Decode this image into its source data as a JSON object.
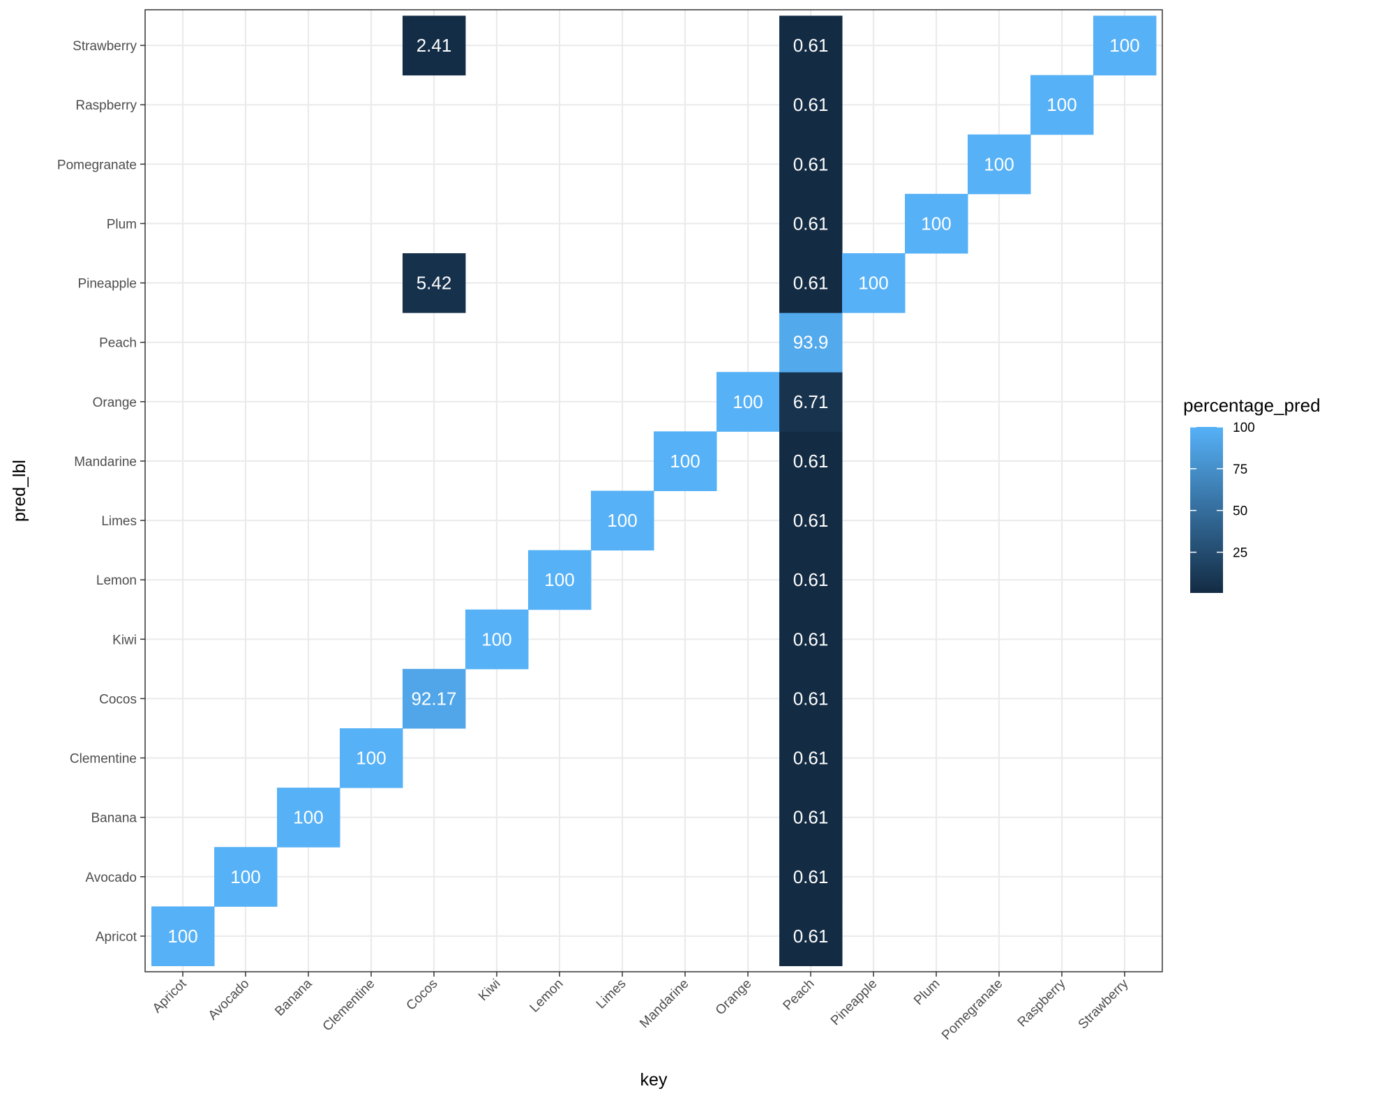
{
  "chart_data": {
    "type": "heatmap",
    "title": "",
    "xlabel": "key",
    "ylabel": "pred_lbl",
    "x_categories": [
      "Apricot",
      "Avocado",
      "Banana",
      "Clementine",
      "Cocos",
      "Kiwi",
      "Lemon",
      "Limes",
      "Mandarine",
      "Orange",
      "Peach",
      "Pineapple",
      "Plum",
      "Pomegranate",
      "Raspberry",
      "Strawberry"
    ],
    "y_categories": [
      "Apricot",
      "Avocado",
      "Banana",
      "Clementine",
      "Cocos",
      "Kiwi",
      "Lemon",
      "Limes",
      "Mandarine",
      "Orange",
      "Peach",
      "Pineapple",
      "Plum",
      "Pomegranate",
      "Raspberry",
      "Strawberry"
    ],
    "cells": [
      {
        "x": "Apricot",
        "y": "Apricot",
        "value": 100,
        "label": "100"
      },
      {
        "x": "Avocado",
        "y": "Avocado",
        "value": 100,
        "label": "100"
      },
      {
        "x": "Banana",
        "y": "Banana",
        "value": 100,
        "label": "100"
      },
      {
        "x": "Clementine",
        "y": "Clementine",
        "value": 100,
        "label": "100"
      },
      {
        "x": "Cocos",
        "y": "Cocos",
        "value": 92.17,
        "label": "92.17"
      },
      {
        "x": "Cocos",
        "y": "Pineapple",
        "value": 5.42,
        "label": "5.42"
      },
      {
        "x": "Cocos",
        "y": "Strawberry",
        "value": 2.41,
        "label": "2.41"
      },
      {
        "x": "Kiwi",
        "y": "Kiwi",
        "value": 100,
        "label": "100"
      },
      {
        "x": "Lemon",
        "y": "Lemon",
        "value": 100,
        "label": "100"
      },
      {
        "x": "Limes",
        "y": "Limes",
        "value": 100,
        "label": "100"
      },
      {
        "x": "Mandarine",
        "y": "Mandarine",
        "value": 100,
        "label": "100"
      },
      {
        "x": "Orange",
        "y": "Orange",
        "value": 100,
        "label": "100"
      },
      {
        "x": "Peach",
        "y": "Apricot",
        "value": 0.61,
        "label": "0.61"
      },
      {
        "x": "Peach",
        "y": "Avocado",
        "value": 0.61,
        "label": "0.61"
      },
      {
        "x": "Peach",
        "y": "Banana",
        "value": 0.61,
        "label": "0.61"
      },
      {
        "x": "Peach",
        "y": "Clementine",
        "value": 0.61,
        "label": "0.61"
      },
      {
        "x": "Peach",
        "y": "Cocos",
        "value": 0.61,
        "label": "0.61"
      },
      {
        "x": "Peach",
        "y": "Kiwi",
        "value": 0.61,
        "label": "0.61"
      },
      {
        "x": "Peach",
        "y": "Lemon",
        "value": 0.61,
        "label": "0.61"
      },
      {
        "x": "Peach",
        "y": "Limes",
        "value": 0.61,
        "label": "0.61"
      },
      {
        "x": "Peach",
        "y": "Mandarine",
        "value": 0.61,
        "label": "0.61"
      },
      {
        "x": "Peach",
        "y": "Orange",
        "value": 6.71,
        "label": "6.71"
      },
      {
        "x": "Peach",
        "y": "Peach",
        "value": 93.9,
        "label": "93.9"
      },
      {
        "x": "Peach",
        "y": "Pineapple",
        "value": 0.61,
        "label": "0.61"
      },
      {
        "x": "Peach",
        "y": "Plum",
        "value": 0.61,
        "label": "0.61"
      },
      {
        "x": "Peach",
        "y": "Pomegranate",
        "value": 0.61,
        "label": "0.61"
      },
      {
        "x": "Peach",
        "y": "Raspberry",
        "value": 0.61,
        "label": "0.61"
      },
      {
        "x": "Peach",
        "y": "Strawberry",
        "value": 0.61,
        "label": "0.61"
      },
      {
        "x": "Pineapple",
        "y": "Pineapple",
        "value": 100,
        "label": "100"
      },
      {
        "x": "Plum",
        "y": "Plum",
        "value": 100,
        "label": "100"
      },
      {
        "x": "Pomegranate",
        "y": "Pomegranate",
        "value": 100,
        "label": "100"
      },
      {
        "x": "Raspberry",
        "y": "Raspberry",
        "value": 100,
        "label": "100"
      },
      {
        "x": "Strawberry",
        "y": "Strawberry",
        "value": 100,
        "label": "100"
      }
    ],
    "legend": {
      "title": "percentage_pred",
      "breaks": [
        25,
        50,
        75,
        100
      ],
      "range": [
        0.61,
        100
      ],
      "low_color": "#132b43",
      "high_color": "#56b1f7",
      "placement": "right"
    },
    "grid": true,
    "panel_border": "#333333",
    "grid_color": "#ebebeb"
  }
}
